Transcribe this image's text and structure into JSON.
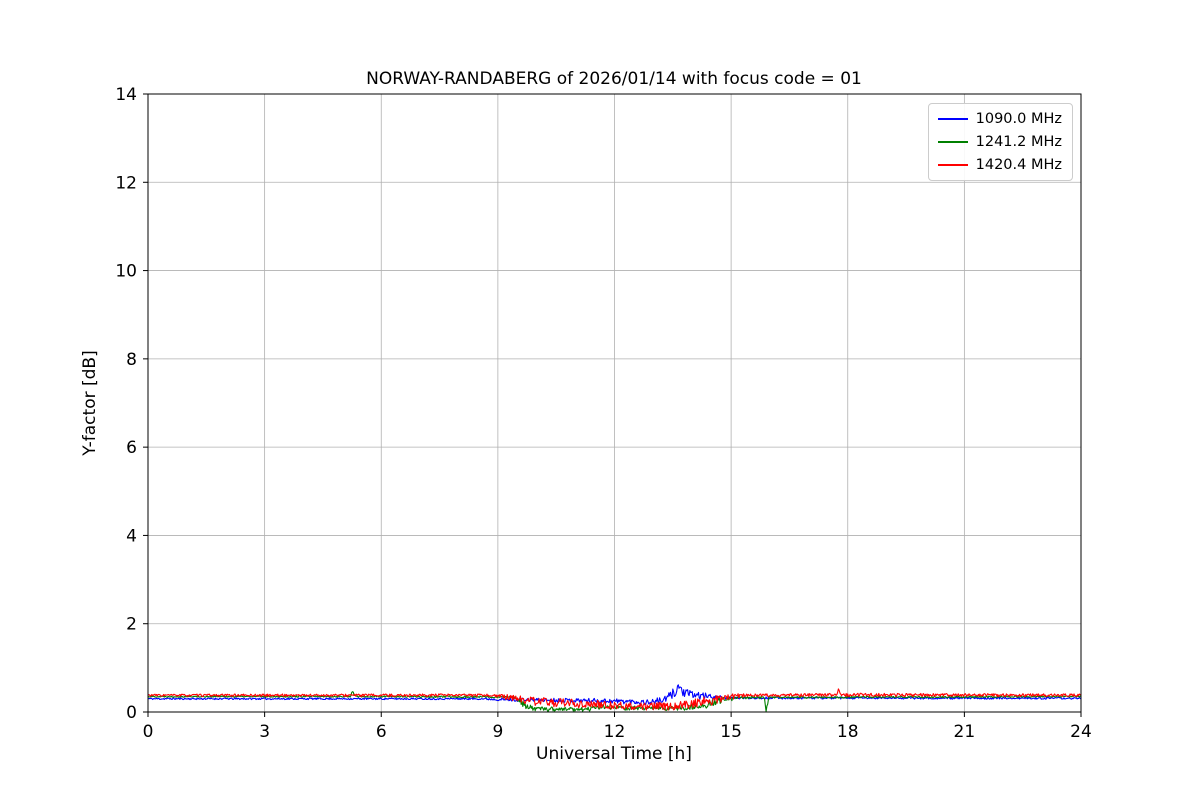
{
  "chart_data": {
    "type": "line",
    "title": "NORWAY-RANDABERG of 2026/01/14 with focus code = 01",
    "xlabel": "Universal Time [h]",
    "ylabel": "Y-factor [dB]",
    "xlim": [
      0,
      24
    ],
    "ylim": [
      0,
      14
    ],
    "xticks": [
      0,
      3,
      6,
      9,
      12,
      15,
      18,
      21,
      24
    ],
    "yticks": [
      0,
      2,
      4,
      6,
      8,
      10,
      12,
      14
    ],
    "grid": true,
    "grid_color": "#b0b0b0",
    "legend_position": "upper right",
    "series": [
      {
        "name": "1090.0 MHz",
        "color": "#0000ff",
        "noise_seed": 11,
        "keypoints": [
          [
            0,
            0.3,
            0.02
          ],
          [
            8.6,
            0.3,
            0.02
          ],
          [
            9.2,
            0.28,
            0.035
          ],
          [
            10.5,
            0.27,
            0.045
          ],
          [
            11.5,
            0.26,
            0.05
          ],
          [
            12.3,
            0.24,
            0.06
          ],
          [
            12.9,
            0.22,
            0.06
          ],
          [
            13.3,
            0.28,
            0.08
          ],
          [
            13.55,
            0.45,
            0.12
          ],
          [
            13.65,
            0.58,
            0.14
          ],
          [
            13.8,
            0.42,
            0.1
          ],
          [
            14.1,
            0.38,
            0.09
          ],
          [
            14.5,
            0.35,
            0.05
          ],
          [
            14.9,
            0.32,
            0.025
          ],
          [
            24,
            0.31,
            0.02
          ]
        ]
      },
      {
        "name": "1241.2 MHz",
        "color": "#008000",
        "noise_seed": 22,
        "keypoints": [
          [
            0,
            0.35,
            0.015
          ],
          [
            5.2,
            0.35,
            0.015
          ],
          [
            5.25,
            0.46,
            0.04
          ],
          [
            5.35,
            0.35,
            0.015
          ],
          [
            9.4,
            0.34,
            0.02
          ],
          [
            9.6,
            0.2,
            0.09
          ],
          [
            9.9,
            0.07,
            0.05
          ],
          [
            11.3,
            0.06,
            0.045
          ],
          [
            11.7,
            0.12,
            0.06
          ],
          [
            12.2,
            0.09,
            0.05
          ],
          [
            13.1,
            0.08,
            0.05
          ],
          [
            13.9,
            0.1,
            0.06
          ],
          [
            14.4,
            0.18,
            0.09
          ],
          [
            14.8,
            0.28,
            0.07
          ],
          [
            15.2,
            0.32,
            0.03
          ],
          [
            15.85,
            0.33,
            0.02
          ],
          [
            15.9,
            0.05,
            0.04
          ],
          [
            15.98,
            0.33,
            0.02
          ],
          [
            24,
            0.35,
            0.015
          ]
        ]
      },
      {
        "name": "1420.4 MHz",
        "color": "#ff0000",
        "noise_seed": 33,
        "keypoints": [
          [
            0,
            0.38,
            0.025
          ],
          [
            8.8,
            0.38,
            0.03
          ],
          [
            9.4,
            0.32,
            0.07
          ],
          [
            9.9,
            0.24,
            0.1
          ],
          [
            10.8,
            0.2,
            0.1
          ],
          [
            11.8,
            0.16,
            0.09
          ],
          [
            12.8,
            0.12,
            0.08
          ],
          [
            13.6,
            0.14,
            0.1
          ],
          [
            14.2,
            0.22,
            0.12
          ],
          [
            14.7,
            0.28,
            0.11
          ],
          [
            15.1,
            0.36,
            0.06
          ],
          [
            15.4,
            0.38,
            0.03
          ],
          [
            17.7,
            0.39,
            0.035
          ],
          [
            17.78,
            0.5,
            0.07
          ],
          [
            17.85,
            0.39,
            0.035
          ],
          [
            24,
            0.38,
            0.03
          ]
        ]
      }
    ]
  }
}
